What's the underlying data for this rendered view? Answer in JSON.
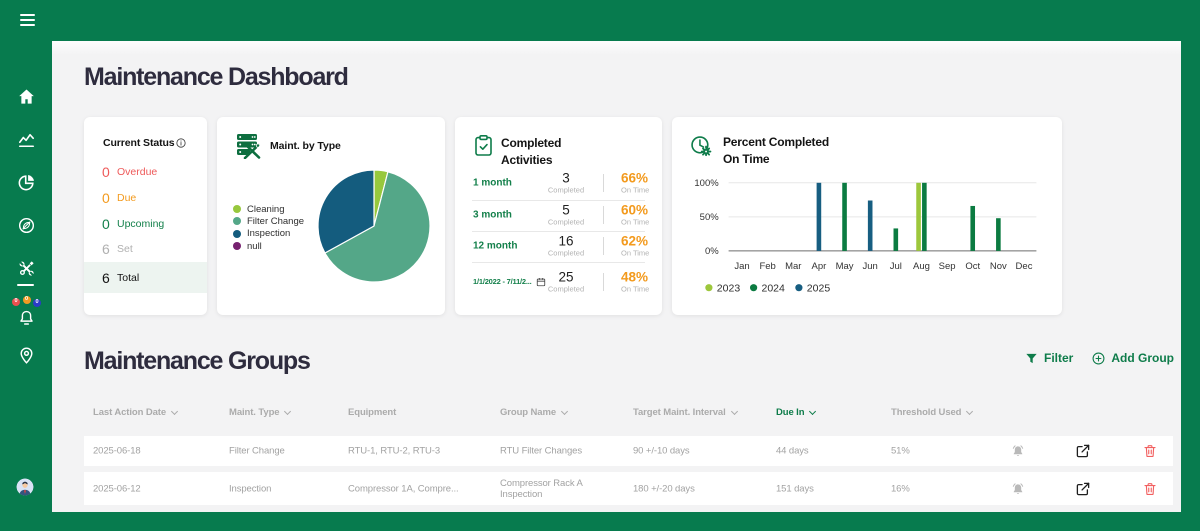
{
  "page": {
    "title": "Maintenance Dashboard",
    "section_title": "Maintenance Groups"
  },
  "sidebar": {
    "notification_badges": [
      {
        "color": "#e84f4f",
        "count": "0"
      },
      {
        "color": "#f09a23",
        "count": "0"
      },
      {
        "color": "#2b3bc8",
        "count": "0"
      }
    ]
  },
  "cards": {
    "current_status": {
      "title": "Current Status",
      "rows": [
        {
          "value": "0",
          "label": "Overdue",
          "color": "red"
        },
        {
          "value": "0",
          "label": "Due",
          "color": "orange"
        },
        {
          "value": "0",
          "label": "Upcoming",
          "color": "green"
        },
        {
          "value": "6",
          "label": "Set",
          "color": "gray"
        },
        {
          "value": "6",
          "label": "Total",
          "color": "dark",
          "highlight": true
        }
      ]
    },
    "maint_by_type": {
      "title": "Maint. by Type"
    },
    "completed_activities": {
      "title_line1": "Completed",
      "title_line2": "Activities",
      "rows": [
        {
          "period": "1 month",
          "calendar_icon": false,
          "completed": "3",
          "completed_label": "Completed",
          "on_time": "66%",
          "on_time_label": "On Time"
        },
        {
          "period": "3 month",
          "calendar_icon": false,
          "completed": "5",
          "completed_label": "Completed",
          "on_time": "60%",
          "on_time_label": "On Time"
        },
        {
          "period": "12 month",
          "calendar_icon": false,
          "completed": "16",
          "completed_label": "Completed",
          "on_time": "62%",
          "on_time_label": "On Time"
        },
        {
          "period": "1/1/2022 - 7/11/2...",
          "calendar_icon": true,
          "completed": "25",
          "completed_label": "Completed",
          "on_time": "48%",
          "on_time_label": "On Time"
        }
      ]
    },
    "percent_completed": {
      "title_line1": "Percent Completed",
      "title_line2": "On Time"
    }
  },
  "chart_data": [
    {
      "type": "pie",
      "title": "Maint. by Type",
      "labels": [
        "Cleaning",
        "Filter Change",
        "Inspection",
        "null"
      ],
      "values": [
        4,
        63,
        33,
        0
      ],
      "colors": [
        "#97c83d",
        "#54a788",
        "#145c7e",
        "#76216f"
      ],
      "legend_position": "left"
    },
    {
      "type": "bar",
      "title": "Percent Completed On Time",
      "categories": [
        "Jan",
        "Feb",
        "Mar",
        "Apr",
        "May",
        "Jun",
        "Jul",
        "Aug",
        "Sep",
        "Oct",
        "Nov",
        "Dec"
      ],
      "series": [
        {
          "name": "2023",
          "color": "#9dc73c",
          "values": [
            null,
            null,
            null,
            null,
            null,
            null,
            null,
            100,
            null,
            null,
            null,
            null
          ]
        },
        {
          "name": "2024",
          "color": "#0b7b41",
          "values": [
            null,
            null,
            null,
            null,
            100,
            null,
            33,
            100,
            null,
            66,
            48,
            null
          ]
        },
        {
          "name": "2025",
          "color": "#175e81",
          "values": [
            null,
            null,
            null,
            100,
            null,
            74,
            null,
            null,
            null,
            null,
            null,
            null
          ]
        }
      ],
      "ytick_labels": [
        "0%",
        "50%",
        "100%"
      ],
      "ylim": [
        0,
        100
      ],
      "grid": true,
      "legend_position": "bottom"
    }
  ],
  "groups_toolbar": {
    "filter_label": "Filter",
    "add_group_label": "Add Group"
  },
  "table": {
    "columns": [
      {
        "label": "Last Action Date",
        "sortable": true,
        "active": false
      },
      {
        "label": "Maint. Type",
        "sortable": true,
        "active": false
      },
      {
        "label": "Equipment",
        "sortable": false,
        "active": false
      },
      {
        "label": "Group Name",
        "sortable": true,
        "active": false
      },
      {
        "label": "Target Maint. Interval",
        "sortable": true,
        "active": false
      },
      {
        "label": "Due In",
        "sortable": true,
        "active": true
      },
      {
        "label": "Threshold Used",
        "sortable": true,
        "active": false
      }
    ],
    "rows": [
      {
        "last_action_date": "2025-06-18",
        "maint_type": "Filter Change",
        "equipment": "RTU-1, RTU-2, RTU-3",
        "group_name": "RTU Filter Changes",
        "target_interval": "90 +/-10 days",
        "due_in": "44 days",
        "threshold_used": "51%"
      },
      {
        "last_action_date": "2025-06-12",
        "maint_type": "Inspection",
        "equipment": "Compressor 1A, Compre...",
        "group_name": "Compressor Rack A Inspection",
        "target_interval": "180 +/-20 days",
        "due_in": "151 days",
        "threshold_used": "16%"
      }
    ]
  }
}
